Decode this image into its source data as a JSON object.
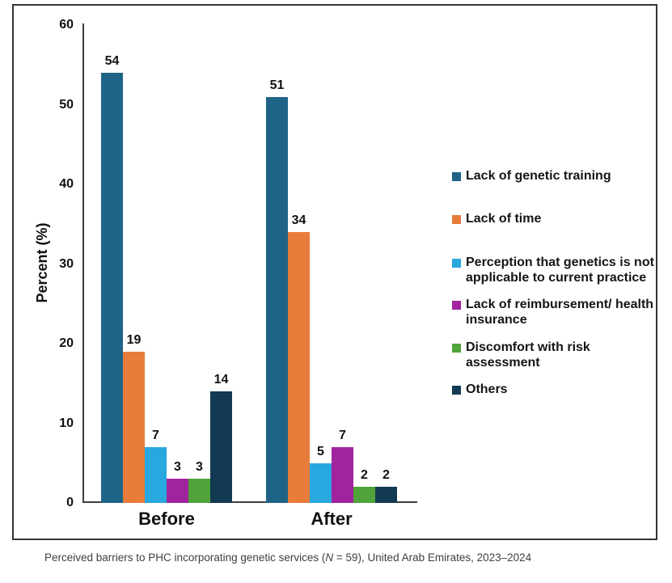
{
  "figure": {
    "caption": {
      "prefix": "Perceived barriers to PHC incorporating genetic services (",
      "italic_n": "N",
      "suffix": " = 59), United Arab Emirates, 2023–2024"
    }
  },
  "chart_data": {
    "type": "bar",
    "title": "",
    "xlabel": "",
    "ylabel": "Percent (%)",
    "ylim": [
      0,
      60
    ],
    "yticks": [
      0,
      10,
      20,
      30,
      40,
      50,
      60
    ],
    "grid": false,
    "legend_position": "right",
    "categories": [
      "Before",
      "After"
    ],
    "series": [
      {
        "name": "Lack of genetic training",
        "color": "#1F6387",
        "values": [
          54,
          51
        ]
      },
      {
        "name": "Lack of time",
        "color": "#E87C3B",
        "values": [
          19,
          34
        ]
      },
      {
        "name": "Perception that genetics is not applicable to current practice",
        "color": "#29A8E0",
        "values": [
          7,
          5
        ]
      },
      {
        "name": "Lack of reimbursement/ health insurance",
        "color": "#A1239E",
        "values": [
          3,
          7
        ]
      },
      {
        "name": "Discomfort with risk assessment",
        "color": "#50A339",
        "values": [
          3,
          2
        ]
      },
      {
        "name": "Others",
        "color": "#123A52",
        "values": [
          14,
          2
        ]
      }
    ]
  }
}
